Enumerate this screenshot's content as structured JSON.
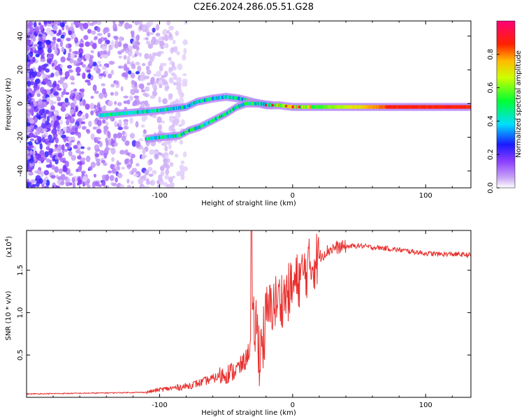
{
  "title": "C2E6.2024.286.05.51.G28",
  "colors": {
    "snr_line": "#e8302e",
    "axis": "#000000"
  },
  "chart_data": [
    {
      "type": "heatmap",
      "xlabel": "Height of straight line (km)",
      "ylabel": "Frequency (Hz)",
      "xlim": [
        -200,
        134
      ],
      "ylim": [
        -50,
        49
      ],
      "xticks": [
        -100,
        0,
        100
      ],
      "xtick_labels": [
        "-100",
        "0",
        "100"
      ],
      "yticks": [
        -40,
        -20,
        0,
        20,
        40
      ],
      "ytick_labels": [
        "-40",
        "-20",
        "0",
        "20",
        "40"
      ],
      "grid": false,
      "colorbar": {
        "label": "Normalized spectral amplitude",
        "range": [
          0,
          1
        ],
        "ticks": [
          0,
          0.2,
          0.4,
          0.6,
          0.8
        ],
        "tick_labels": [
          "0.0",
          "0.2",
          "0.4",
          "0.6",
          "0.8"
        ],
        "colors": [
          "#ffffff",
          "#9933ff",
          "#0000ff",
          "#00ffff",
          "#00ff00",
          "#ffff00",
          "#ff8800",
          "#ff0000",
          "#ff0066"
        ]
      },
      "tracks": [
        {
          "points": [
            [
              -145,
              -7
            ],
            [
              -130,
              -6
            ],
            [
              -115,
              -5
            ],
            [
              -100,
              -4
            ],
            [
              -90,
              -3
            ],
            [
              -80,
              -2
            ],
            [
              -72,
              1
            ],
            [
              -60,
              3
            ],
            [
              -50,
              4
            ],
            [
              -40,
              3
            ],
            [
              -30,
              1
            ],
            [
              -20,
              -1
            ],
            [
              -10,
              -1
            ],
            [
              0,
              -2
            ],
            [
              20,
              -2
            ],
            [
              50,
              -2
            ],
            [
              80,
              -2
            ],
            [
              134,
              -2
            ]
          ]
        },
        {
          "points": [
            [
              -110,
              -21
            ],
            [
              -100,
              -20
            ],
            [
              -85,
              -19
            ],
            [
              -78,
              -16
            ],
            [
              -70,
              -14
            ],
            [
              -60,
              -10
            ],
            [
              -50,
              -6
            ],
            [
              -42,
              -2
            ],
            [
              -35,
              0
            ],
            [
              -25,
              0
            ],
            [
              -15,
              -1
            ]
          ]
        }
      ]
    },
    {
      "type": "line",
      "xlabel": "Height of straight line (km)",
      "ylabel": "SNR (10 * v/v)",
      "scale_note": "(x10",
      "scale_exp": "4",
      "xlim": [
        -200,
        134
      ],
      "ylim": [
        0,
        1.97
      ],
      "xticks": [
        -100,
        0,
        100
      ],
      "xtick_labels": [
        "-100",
        "0",
        "100"
      ],
      "yticks": [
        0.5,
        1.0,
        1.5
      ],
      "ytick_labels": [
        "0.5",
        "1.0",
        "1.5"
      ],
      "grid": false,
      "series": [
        {
          "x": [
            -200,
            -150,
            -110,
            -100,
            -90,
            -80,
            -70,
            -60,
            -50,
            -45,
            -40,
            -35,
            -30,
            -28,
            -25,
            -22,
            -20,
            -18,
            -15,
            -10,
            -5,
            0,
            5,
            10,
            15,
            20,
            25,
            30,
            40,
            50,
            60,
            70,
            80,
            90,
            100,
            110,
            120,
            134
          ],
          "y": [
            0.04,
            0.05,
            0.06,
            0.09,
            0.11,
            0.13,
            0.17,
            0.22,
            0.28,
            0.3,
            0.35,
            0.45,
            0.7,
            0.9,
            0.55,
            0.7,
            0.9,
            1.0,
            1.1,
            1.15,
            1.2,
            1.3,
            1.4,
            1.5,
            1.58,
            1.66,
            1.72,
            1.76,
            1.78,
            1.79,
            1.77,
            1.76,
            1.74,
            1.72,
            1.7,
            1.69,
            1.69,
            1.68
          ]
        }
      ]
    }
  ]
}
